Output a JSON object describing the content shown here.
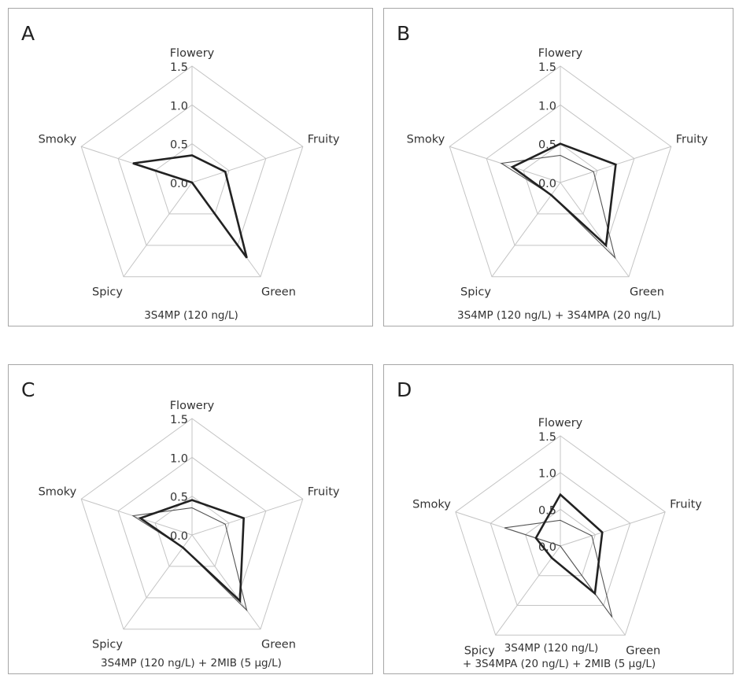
{
  "chart_data": [
    {
      "type": "radar",
      "panel_label": "A",
      "axes": [
        "Flowery",
        "Fruity",
        "Green",
        "Spicy",
        "Smoky"
      ],
      "ticks": [
        "0.0",
        "0.5",
        "1.0",
        "1.5"
      ],
      "range": [
        0,
        1.5
      ],
      "caption": [
        "3S4MP (120 ng/L)"
      ],
      "series": [
        {
          "style": "bold",
          "values": [
            0.35,
            0.45,
            1.2,
            0.0,
            0.8
          ]
        }
      ]
    },
    {
      "type": "radar",
      "panel_label": "B",
      "axes": [
        "Flowery",
        "Fruity",
        "Green",
        "Spicy",
        "Smoky"
      ],
      "ticks": [
        "0.0",
        "0.5",
        "1.0",
        "1.5"
      ],
      "range": [
        0,
        1.5
      ],
      "caption": [
        "3S4MP (120 ng/L) + 3S4MPA (20 ng/L)"
      ],
      "series": [
        {
          "style": "thin",
          "values": [
            0.35,
            0.45,
            1.2,
            0.2,
            0.8
          ]
        },
        {
          "style": "bold",
          "values": [
            0.5,
            0.75,
            1.0,
            0.2,
            0.65
          ]
        }
      ]
    },
    {
      "type": "radar",
      "panel_label": "C",
      "axes": [
        "Flowery",
        "Fruity",
        "Green",
        "Spicy",
        "Smoky"
      ],
      "ticks": [
        "0.0",
        "0.5",
        "1.0",
        "1.5"
      ],
      "range": [
        0,
        1.5
      ],
      "caption": [
        "3S4MP (120 ng/L) + 2MIB (5 µg/L)"
      ],
      "series": [
        {
          "style": "thin",
          "values": [
            0.35,
            0.45,
            1.2,
            0.2,
            0.8
          ]
        },
        {
          "style": "bold",
          "values": [
            0.45,
            0.7,
            1.05,
            0.2,
            0.7
          ]
        }
      ]
    },
    {
      "type": "radar",
      "panel_label": "D",
      "axes": [
        "Flowery",
        "Fruity",
        "Green",
        "Spicy",
        "Smoky"
      ],
      "ticks": [
        "0.0",
        "0.5",
        "1.0",
        "1.5"
      ],
      "range": [
        0,
        1.5
      ],
      "caption": [
        "3S4MP (120 ng/L)",
        "+ 3S4MPA (20 ng/L) + 2MIB (5 µg/L)"
      ],
      "series": [
        {
          "style": "thin",
          "values": [
            0.35,
            0.45,
            1.2,
            0.0,
            0.8
          ]
        },
        {
          "style": "bold",
          "values": [
            0.7,
            0.6,
            0.8,
            0.2,
            0.35
          ]
        }
      ]
    }
  ]
}
